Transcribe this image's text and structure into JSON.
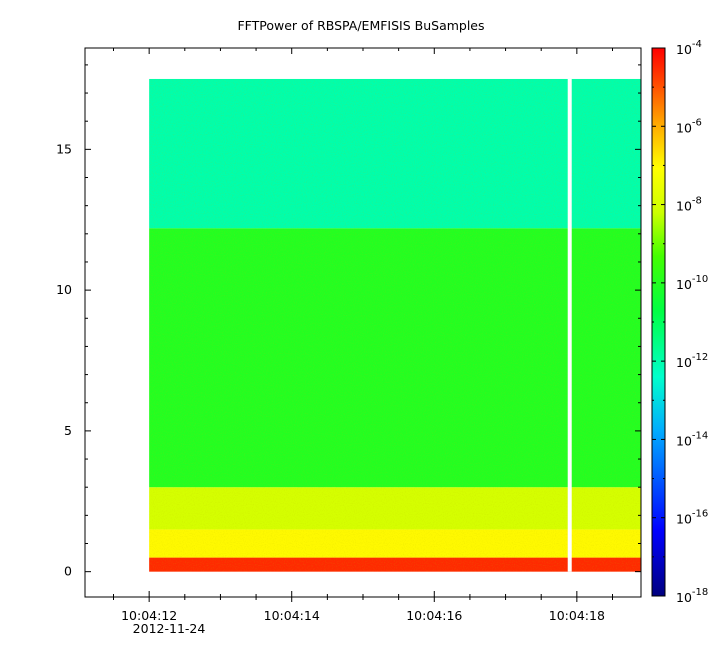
{
  "chart_data": {
    "type": "heatmap",
    "title": "FFTPower of RBSPA/EMFISIS  BuSamples",
    "xlabel": "",
    "ylabel": "",
    "x_date": "2012-11-24",
    "x_ticks": [
      "10:04:12",
      "10:04:14",
      "10:04:16",
      "10:04:18"
    ],
    "x_range_seconds_label": [
      "10:04:11.1",
      "10:04:18.9"
    ],
    "ylim": [
      -0.9,
      18.6
    ],
    "y_ticks": [
      0,
      5,
      10,
      15
    ],
    "grid": false,
    "colorbar": {
      "scale": "log",
      "range": [
        "1e-18",
        "1e-4"
      ],
      "tick_exponents": [
        -4,
        -6,
        -8,
        -10,
        -12,
        -14,
        -16,
        -18
      ],
      "tick_base": "10"
    },
    "data_extent": {
      "start": "10:04:12.0",
      "end": "10:04:18.9",
      "frequency_min": 0,
      "frequency_max": 17.5,
      "gap_at": "10:04:17.9"
    },
    "bands": [
      {
        "frequency_range": [
          0.0,
          0.5
        ],
        "power": "3e-5"
      },
      {
        "frequency_range": [
          0.5,
          1.5
        ],
        "power": "1e-7"
      },
      {
        "frequency_range": [
          1.5,
          3.0
        ],
        "power": "1e-8"
      },
      {
        "frequency_range": [
          3.0,
          12.2
        ],
        "power": "1e-10"
      },
      {
        "frequency_range": [
          12.2,
          17.5
        ],
        "power": "1e-12"
      }
    ],
    "colors": {
      "low": "#00007f",
      "mid_low": "#00ffff",
      "mid": "#00ff00",
      "mid_high": "#ffff00",
      "high": "#ff0000"
    }
  }
}
